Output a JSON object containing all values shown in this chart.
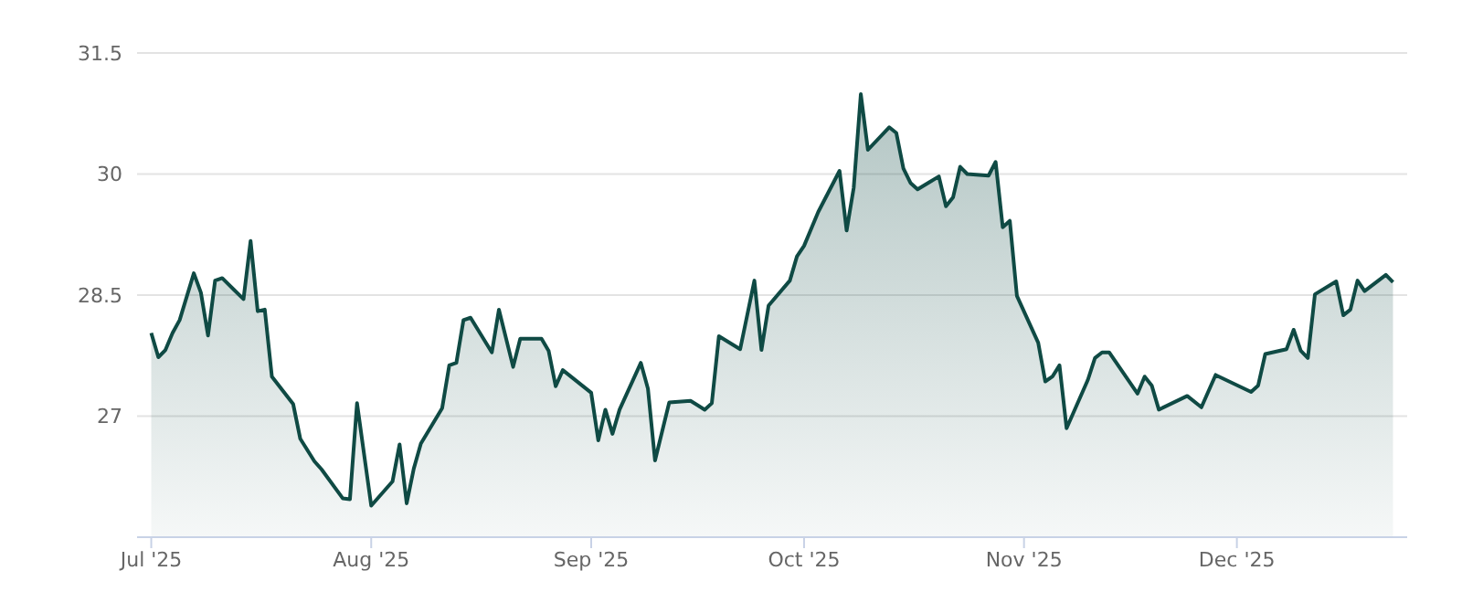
{
  "chart_data": {
    "type": "area",
    "x": [
      "2025-07-01",
      "2025-07-02",
      "2025-07-03",
      "2025-07-04",
      "2025-07-05",
      "2025-07-07",
      "2025-07-08",
      "2025-07-09",
      "2025-07-10",
      "2025-07-11",
      "2025-07-14",
      "2025-07-15",
      "2025-07-16",
      "2025-07-17",
      "2025-07-18",
      "2025-07-21",
      "2025-07-22",
      "2025-07-24",
      "2025-07-25",
      "2025-07-28",
      "2025-07-29",
      "2025-07-30",
      "2025-08-01",
      "2025-08-04",
      "2025-08-05",
      "2025-08-06",
      "2025-08-07",
      "2025-08-08",
      "2025-08-11",
      "2025-08-12",
      "2025-08-13",
      "2025-08-14",
      "2025-08-15",
      "2025-08-18",
      "2025-08-19",
      "2025-08-21",
      "2025-08-22",
      "2025-08-25",
      "2025-08-26",
      "2025-08-27",
      "2025-08-28",
      "2025-09-01",
      "2025-09-02",
      "2025-09-03",
      "2025-09-04",
      "2025-09-05",
      "2025-09-08",
      "2025-09-09",
      "2025-09-10",
      "2025-09-12",
      "2025-09-15",
      "2025-09-17",
      "2025-09-18",
      "2025-09-19",
      "2025-09-22",
      "2025-09-24",
      "2025-09-25",
      "2025-09-26",
      "2025-09-29",
      "2025-09-30",
      "2025-10-01",
      "2025-10-03",
      "2025-10-06",
      "2025-10-07",
      "2025-10-08",
      "2025-10-09",
      "2025-10-10",
      "2025-10-13",
      "2025-10-14",
      "2025-10-15",
      "2025-10-16",
      "2025-10-17",
      "2025-10-20",
      "2025-10-21",
      "2025-10-22",
      "2025-10-23",
      "2025-10-24",
      "2025-10-27",
      "2025-10-28",
      "2025-10-29",
      "2025-10-30",
      "2025-10-31",
      "2025-11-03",
      "2025-11-04",
      "2025-11-05",
      "2025-11-06",
      "2025-11-07",
      "2025-11-10",
      "2025-11-11",
      "2025-11-12",
      "2025-11-13",
      "2025-11-17",
      "2025-11-18",
      "2025-11-19",
      "2025-11-20",
      "2025-11-24",
      "2025-11-26",
      "2025-11-28",
      "2025-12-03",
      "2025-12-04",
      "2025-12-05",
      "2025-12-08",
      "2025-12-09",
      "2025-12-10",
      "2025-12-11",
      "2025-12-12",
      "2025-12-15",
      "2025-12-16",
      "2025-12-17",
      "2025-12-18",
      "2025-12-19",
      "2025-12-22",
      "2025-12-23"
    ],
    "series": [
      {
        "color": "#0f4a44",
        "values": [
          28.03,
          27.73,
          27.82,
          28.03,
          28.19,
          28.77,
          28.53,
          28.0,
          28.68,
          28.71,
          28.45,
          29.17,
          28.3,
          28.32,
          27.49,
          27.15,
          26.72,
          26.44,
          26.34,
          25.98,
          25.97,
          27.16,
          25.89,
          26.19,
          26.65,
          25.92,
          26.35,
          26.66,
          27.1,
          27.63,
          27.66,
          28.19,
          28.22,
          27.79,
          28.32,
          27.61,
          27.96,
          27.96,
          27.81,
          27.37,
          27.57,
          27.29,
          26.7,
          27.08,
          26.78,
          27.08,
          27.66,
          27.34,
          26.45,
          27.17,
          27.19,
          27.08,
          27.16,
          27.99,
          27.83,
          28.68,
          27.82,
          28.37,
          28.68,
          28.98,
          29.11,
          29.53,
          30.04,
          29.3,
          29.83,
          30.99,
          30.3,
          30.58,
          30.51,
          30.07,
          29.89,
          29.81,
          29.97,
          29.6,
          29.71,
          30.09,
          30.0,
          29.98,
          30.15,
          29.34,
          29.42,
          28.49,
          27.91,
          27.43,
          27.49,
          27.63,
          26.85,
          27.45,
          27.72,
          27.79,
          27.79,
          27.28,
          27.49,
          27.38,
          27.08,
          27.25,
          27.11,
          27.51,
          27.3,
          27.38,
          27.77,
          27.83,
          28.07,
          27.81,
          27.72,
          28.51,
          28.67,
          28.25,
          28.32,
          28.68,
          28.55,
          28.75,
          28.66
        ]
      }
    ],
    "xlim": [
      "2025-06-29",
      "2025-12-25"
    ],
    "xticks": [
      {
        "value": "2025-07-01",
        "label": "Jul '25"
      },
      {
        "value": "2025-08-01",
        "label": "Aug '25"
      },
      {
        "value": "2025-09-01",
        "label": "Sep '25"
      },
      {
        "value": "2025-10-01",
        "label": "Oct '25"
      },
      {
        "value": "2025-11-01",
        "label": "Nov '25"
      },
      {
        "value": "2025-12-01",
        "label": "Dec '25"
      }
    ],
    "ylim": [
      25.5,
      31.5
    ],
    "yticks": [
      27,
      28.5,
      30,
      31.5
    ],
    "grid": "y",
    "legend": false,
    "marker": "none",
    "line_style": "solid"
  }
}
